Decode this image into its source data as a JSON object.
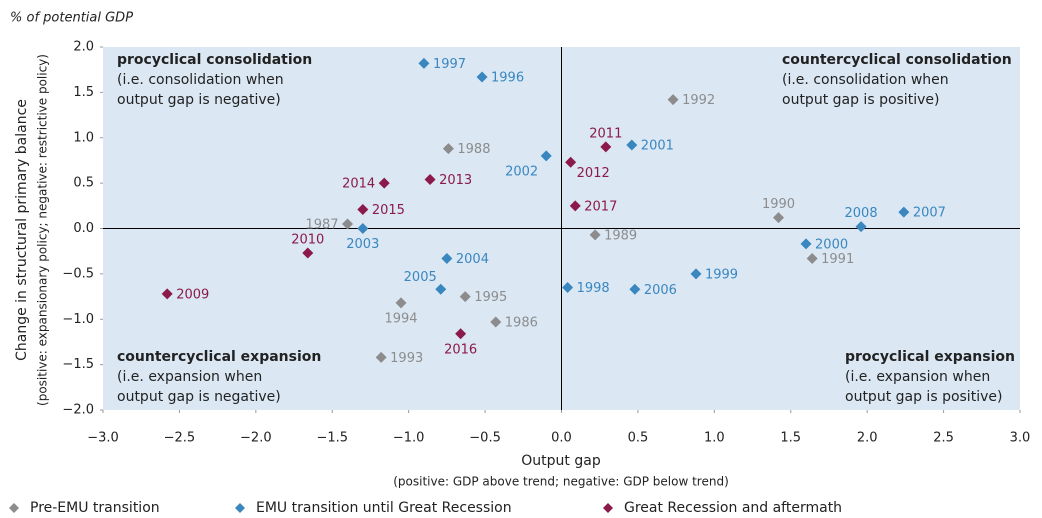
{
  "chart_data": {
    "type": "scatter",
    "unit_note": "% of potential GDP",
    "x_label": "Output gap",
    "x_sublabel": "(positive: GDP above trend; negative: GDP below trend)",
    "y_label": "Change in structural primary balance",
    "y_sublabel": "(positive: expansionary policy; negative: restrictive policy)",
    "xlim": [
      -3.0,
      3.0
    ],
    "ylim": [
      -2.0,
      2.0
    ],
    "xticks": [
      {
        "value": -3.0,
        "label": "−3.0"
      },
      {
        "value": -2.5,
        "label": "−2.5"
      },
      {
        "value": -2.0,
        "label": "−2.0"
      },
      {
        "value": -1.5,
        "label": "−1.5"
      },
      {
        "value": -1.0,
        "label": "−1.0"
      },
      {
        "value": -0.5,
        "label": "−0.5"
      },
      {
        "value": 0.0,
        "label": "0.0"
      },
      {
        "value": 0.5,
        "label": "0.5"
      },
      {
        "value": 1.0,
        "label": "1.0"
      },
      {
        "value": 1.5,
        "label": "1.5"
      },
      {
        "value": 2.0,
        "label": "2.0"
      },
      {
        "value": 2.5,
        "label": "2.5"
      },
      {
        "value": 3.0,
        "label": "3.0"
      }
    ],
    "yticks": [
      {
        "value": 2.0,
        "label": "2.0"
      },
      {
        "value": 1.5,
        "label": "1.5"
      },
      {
        "value": 1.0,
        "label": "1.0"
      },
      {
        "value": 0.5,
        "label": "0.5"
      },
      {
        "value": 0.0,
        "label": "0.0"
      },
      {
        "value": -0.5,
        "label": "−0.5"
      },
      {
        "value": -1.0,
        "label": "−1.0"
      },
      {
        "value": -1.5,
        "label": "−1.5"
      },
      {
        "value": -2.0,
        "label": "−2.0"
      }
    ],
    "annotations": [
      {
        "title": "procyclical consolidation",
        "lines": [
          "(i.e. consolidation when",
          "output gap is negative)"
        ]
      },
      {
        "title": "countercyclical consolidation",
        "lines": [
          "(i.e. consolidation when",
          "output gap is positive)"
        ]
      },
      {
        "title": "countercyclical expansion",
        "lines": [
          "(i.e. expansion when",
          "output gap is negative)"
        ]
      },
      {
        "title": "procyclical expansion",
        "lines": [
          "(i.e. expansion when",
          "output gap is positive)"
        ]
      }
    ],
    "series": [
      {
        "name": "Pre-EMU transition",
        "color": "#8c8c8c",
        "labels": [
          "1992",
          "1988",
          "1987",
          "1990",
          "1989",
          "1991",
          "1995",
          "1994",
          "1986",
          "1993"
        ],
        "x": [
          0.73,
          -0.74,
          -1.4,
          1.42,
          0.22,
          1.64,
          -0.63,
          -1.05,
          -0.43,
          -1.18
        ],
        "values": [
          1.42,
          0.88,
          0.05,
          0.12,
          -0.07,
          -0.33,
          -0.75,
          -0.82,
          -1.03,
          -1.42
        ]
      },
      {
        "name": "EMU transition until Great Recession",
        "color": "#3a87c0",
        "labels": [
          "1997",
          "1996",
          "2002",
          "2001",
          "2003",
          "2008",
          "2007",
          "2000",
          "2004",
          "1999",
          "2005",
          "1998",
          "2006"
        ],
        "x": [
          -0.9,
          -0.52,
          -0.1,
          0.46,
          -1.3,
          1.96,
          2.24,
          1.6,
          -0.75,
          0.88,
          -0.79,
          0.04,
          0.48
        ],
        "values": [
          1.82,
          1.67,
          0.8,
          0.92,
          0.0,
          0.02,
          0.18,
          -0.17,
          -0.33,
          -0.5,
          -0.67,
          -0.65,
          -0.67
        ]
      },
      {
        "name": "Great Recession and aftermath",
        "color": "#8b1a4a",
        "labels": [
          "2011",
          "2012",
          "2014",
          "2013",
          "2015",
          "2017",
          "2010",
          "2009",
          "2016"
        ],
        "x": [
          0.29,
          0.06,
          -1.16,
          -0.86,
          -1.3,
          0.09,
          -1.66,
          -2.58,
          -0.66
        ],
        "values": [
          0.9,
          0.73,
          0.5,
          0.54,
          0.21,
          0.25,
          -0.27,
          -0.72,
          -1.16
        ]
      }
    ]
  }
}
